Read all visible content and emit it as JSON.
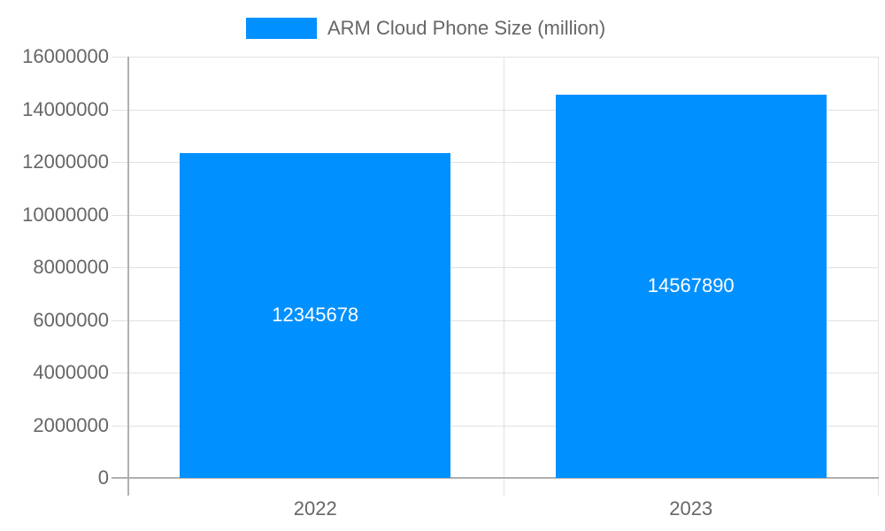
{
  "chart_data": {
    "type": "bar",
    "title": "",
    "categories": [
      "2022",
      "2023"
    ],
    "series": [
      {
        "name": "ARM Cloud Phone Size (million)",
        "values": [
          12345678,
          14567890
        ],
        "color": "#0090ff"
      }
    ],
    "data_labels": [
      "12345678",
      "14567890"
    ],
    "xlabel": "",
    "ylabel": "",
    "ylim": [
      0,
      16000000
    ],
    "yticks": [
      "0",
      "2000000",
      "4000000",
      "6000000",
      "8000000",
      "10000000",
      "12000000",
      "14000000",
      "16000000"
    ],
    "grid": true,
    "legend_position": "top"
  },
  "legend": {
    "label": "ARM Cloud Phone Size (million)",
    "color": "#0090ff"
  }
}
